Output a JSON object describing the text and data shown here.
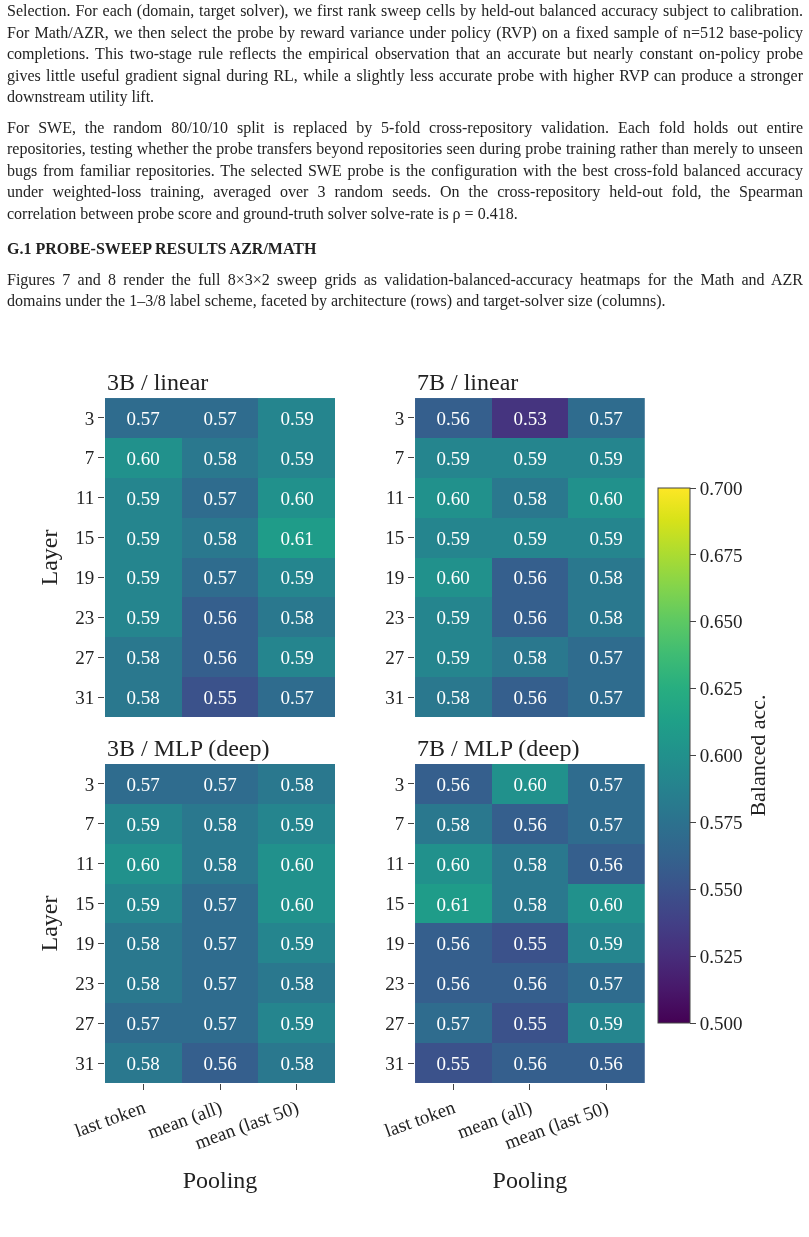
{
  "chart_data": [
    {
      "type": "heatmap",
      "title": "3B / linear",
      "ylabel": "Layer",
      "tick_labels": "y",
      "data_labels": true,
      "annotations": [
        "Selection. For each (domain, target solver), we first rank sweep cells by held-out balanced accuracy subject to calibration. For Math/AZR, we then select the probe by reward variance under policy (RVP) on a fixed sample of n=512 base-policy completions. This two-stage rule reflects the empirical observation that an accurate but nearly constant on-policy probe gives little useful gradient signal during RL, while a slightly less accurate probe with higher RVP can produce a stronger downstream utility lift.",
        "For SWE, the random 80/10/10 split is replaced by 5-fold cross-repository validation. Each fold holds out entire repositories, testing whether the probe transfers beyond repositories seen during probe training rather than merely to unseen bugs from familiar repositories. The selected SWE probe is the configuration with the best cross-fold balanced accuracy under weighted-loss training, averaged over 3 random seeds. On the cross-repository held-out fold, the Spearman correlation between probe score and ground-truth solver solve-rate is ρ = 0.418.",
        "G.1 PROBE-SWEEP RESULTS AZR/MATH",
        "Figures 7 and 8 render the full 8×3×2 sweep grids as validation-balanced-accuracy heatmaps for the Math and AZR domains under the 1–3/8 label scheme, faceted by architecture (rows) and target-solver size (columns)."
      ],
      "categories": [
        "last token",
        "mean (all)",
        "mean (last 50)"
      ],
      "y_categories": [
        "3",
        "7",
        "11",
        "15",
        "19",
        "23",
        "27",
        "31"
      ],
      "cells": [
        [
          0.57,
          0.57,
          0.59
        ],
        [
          0.6,
          0.58,
          0.59
        ],
        [
          0.59,
          0.57,
          0.6
        ],
        [
          0.59,
          0.58,
          0.61
        ],
        [
          0.59,
          0.57,
          0.59
        ],
        [
          0.59,
          0.56,
          0.58
        ],
        [
          0.58,
          0.56,
          0.59
        ],
        [
          0.58,
          0.55,
          0.57
        ]
      ],
      "cell_labels": [
        [
          "0.57",
          "0.57",
          "0.59"
        ],
        [
          "0.60",
          "0.58",
          "0.59"
        ],
        [
          "0.59",
          "0.57",
          "0.60"
        ],
        [
          "0.59",
          "0.58",
          "0.61"
        ],
        [
          "0.59",
          "0.57",
          "0.59"
        ],
        [
          "0.59",
          "0.56",
          "0.58"
        ],
        [
          "0.58",
          "0.56",
          "0.59"
        ],
        [
          "0.58",
          "0.55",
          "0.57"
        ]
      ]
    },
    {
      "type": "heatmap",
      "title": "7B / linear",
      "tick_labels": "y",
      "data_labels": true,
      "clabel": "Balanced acc.",
      "clim": [
        0.5,
        0.7
      ],
      "cticks": [
        {
          "value": 0.5,
          "label": "0.500"
        },
        {
          "value": 0.525,
          "label": "0.525"
        },
        {
          "value": 0.55,
          "label": "0.550"
        },
        {
          "value": 0.575,
          "label": "0.575"
        },
        {
          "value": 0.6,
          "label": "0.600"
        },
        {
          "value": 0.625,
          "label": "0.625"
        },
        {
          "value": 0.65,
          "label": "0.650"
        },
        {
          "value": 0.675,
          "label": "0.675"
        },
        {
          "value": 0.7,
          "label": "0.700"
        }
      ],
      "categories": [
        "last token",
        "mean (all)",
        "mean (last 50)"
      ],
      "y_categories": [
        "3",
        "7",
        "11",
        "15",
        "19",
        "23",
        "27",
        "31"
      ],
      "cells": [
        [
          0.56,
          0.53,
          0.57
        ],
        [
          0.59,
          0.59,
          0.59
        ],
        [
          0.6,
          0.58,
          0.6
        ],
        [
          0.59,
          0.59,
          0.59
        ],
        [
          0.6,
          0.56,
          0.58
        ],
        [
          0.59,
          0.56,
          0.58
        ],
        [
          0.59,
          0.58,
          0.57
        ],
        [
          0.58,
          0.56,
          0.57
        ]
      ],
      "cell_labels": [
        [
          "0.56",
          "0.53",
          "0.57"
        ],
        [
          "0.59",
          "0.59",
          "0.59"
        ],
        [
          "0.60",
          "0.58",
          "0.60"
        ],
        [
          "0.59",
          "0.59",
          "0.59"
        ],
        [
          "0.60",
          "0.56",
          "0.58"
        ],
        [
          "0.59",
          "0.56",
          "0.58"
        ],
        [
          "0.59",
          "0.58",
          "0.57"
        ],
        [
          "0.58",
          "0.56",
          "0.57"
        ]
      ]
    },
    {
      "type": "heatmap",
      "title": "3B / MLP (deep)",
      "xlabel": "Pooling",
      "ylabel": "Layer",
      "data_labels": true,
      "categories": [
        "last token",
        "mean (all)",
        "mean (last 50)"
      ],
      "y_categories": [
        "3",
        "7",
        "11",
        "15",
        "19",
        "23",
        "27",
        "31"
      ],
      "cells": [
        [
          0.57,
          0.57,
          0.58
        ],
        [
          0.59,
          0.58,
          0.59
        ],
        [
          0.6,
          0.58,
          0.6
        ],
        [
          0.59,
          0.57,
          0.6
        ],
        [
          0.58,
          0.57,
          0.59
        ],
        [
          0.58,
          0.57,
          0.58
        ],
        [
          0.57,
          0.57,
          0.59
        ],
        [
          0.58,
          0.56,
          0.58
        ]
      ],
      "cell_labels": [
        [
          "0.57",
          "0.57",
          "0.58"
        ],
        [
          "0.59",
          "0.58",
          "0.59"
        ],
        [
          "0.60",
          "0.58",
          "0.60"
        ],
        [
          "0.59",
          "0.57",
          "0.60"
        ],
        [
          "0.58",
          "0.57",
          "0.59"
        ],
        [
          "0.58",
          "0.57",
          "0.58"
        ],
        [
          "0.57",
          "0.57",
          "0.59"
        ],
        [
          "0.58",
          "0.56",
          "0.58"
        ]
      ]
    },
    {
      "type": "heatmap",
      "title": "7B / MLP (deep)",
      "xlabel": "Pooling",
      "data_labels": true,
      "categories": [
        "last token",
        "mean (all)",
        "mean (last 50)"
      ],
      "y_categories": [
        "3",
        "7",
        "11",
        "15",
        "19",
        "23",
        "27",
        "31"
      ],
      "cells": [
        [
          0.56,
          0.6,
          0.57
        ],
        [
          0.58,
          0.56,
          0.57
        ],
        [
          0.6,
          0.58,
          0.56
        ],
        [
          0.61,
          0.58,
          0.6
        ],
        [
          0.56,
          0.55,
          0.59
        ],
        [
          0.56,
          0.56,
          0.57
        ],
        [
          0.57,
          0.55,
          0.59
        ],
        [
          0.55,
          0.56,
          0.56
        ]
      ],
      "cell_labels": [
        [
          "0.56",
          "0.60",
          "0.57"
        ],
        [
          "0.58",
          "0.56",
          "0.57"
        ],
        [
          "0.60",
          "0.58",
          "0.56"
        ],
        [
          "0.61",
          "0.58",
          "0.60"
        ],
        [
          "0.56",
          "0.55",
          "0.59"
        ],
        [
          "0.56",
          "0.56",
          "0.57"
        ],
        [
          "0.57",
          "0.55",
          "0.59"
        ],
        [
          "0.55",
          "0.56",
          "0.56"
        ]
      ]
    }
  ]
}
